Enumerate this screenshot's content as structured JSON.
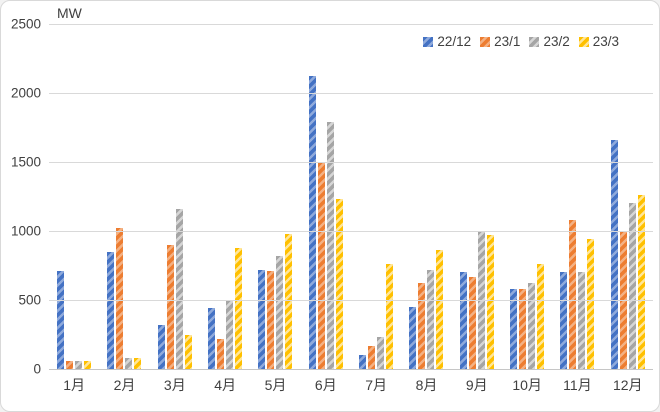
{
  "chart_data": {
    "type": "bar",
    "title": "",
    "ylabel": "MW",
    "xlabel": "",
    "categories": [
      "1月",
      "2月",
      "3月",
      "4月",
      "5月",
      "6月",
      "7月",
      "8月",
      "9月",
      "10月",
      "11月",
      "12月"
    ],
    "series": [
      {
        "name": "22/12",
        "color": "#4472C4",
        "stripe_color": "#8FAADC",
        "values": [
          710,
          850,
          320,
          440,
          720,
          2120,
          100,
          450,
          700,
          580,
          700,
          1660
        ]
      },
      {
        "name": "23/1",
        "color": "#ED7D31",
        "stripe_color": "#F4B183",
        "values": [
          55,
          1020,
          900,
          220,
          710,
          1490,
          170,
          620,
          670,
          580,
          1080,
          1000
        ]
      },
      {
        "name": "23/2",
        "color": "#A5A5A5",
        "stripe_color": "#D6D6D6",
        "values": [
          55,
          80,
          1160,
          490,
          820,
          1790,
          230,
          720,
          1000,
          620,
          700,
          1200
        ]
      },
      {
        "name": "23/3",
        "color": "#FFC000",
        "stripe_color": "#FFE699",
        "values": [
          55,
          80,
          250,
          880,
          980,
          1230,
          760,
          860,
          970,
          760,
          940,
          1260
        ]
      }
    ],
    "ylim": [
      0,
      2500
    ],
    "yticks": [
      0,
      500,
      1000,
      1500,
      2000,
      2500
    ],
    "grid": "horizontal",
    "legend_position": "top-right",
    "bar_fill_style": "diagonal-stripes"
  },
  "frame": {
    "background": "#ffffff",
    "border_color": "#d9d9d9",
    "grid_color": "#d9d9d9",
    "text_color": "#404040"
  }
}
